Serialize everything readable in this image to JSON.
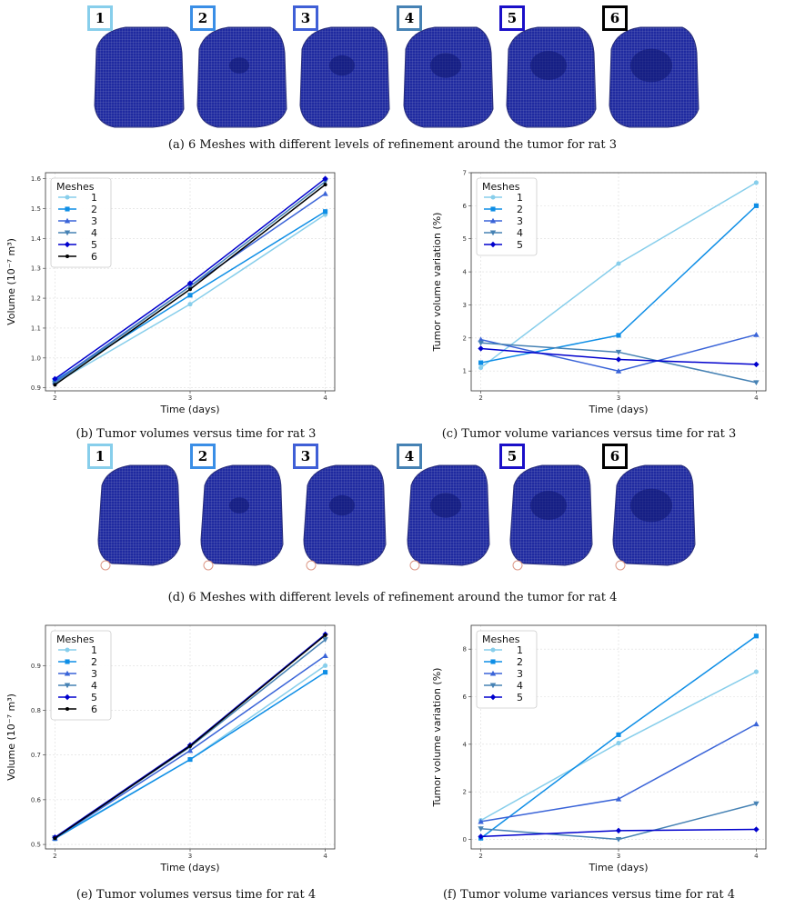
{
  "captions": {
    "a": "(a) 6 Meshes with different levels of refinement around the tumor for rat 3",
    "b": "(b) Tumor volumes versus time for rat 3",
    "c": "(c) Tumor volume variances versus time for rat 3",
    "d": "(d) 6 Meshes with different levels of refinement around the tumor for rat 4",
    "e": "(e) Tumor volumes versus time for rat 4",
    "f": "(f) Tumor volume variances versus time for rat 4"
  },
  "mesh_labels": [
    "1",
    "2",
    "3",
    "4",
    "5",
    "6"
  ],
  "mesh_label_colors": [
    "#87ceeb",
    "#3a8ee6",
    "#3f5fd6",
    "#4682b4",
    "#1a0fc8",
    "#000000"
  ],
  "mesh_fill_color": "#1f2aa0",
  "series_colors": [
    "#87ceeb",
    "#0e8ee6",
    "#3a64d8",
    "#4682b4",
    "#0000cd",
    "#000000"
  ],
  "chart_data": [
    {
      "id": "b",
      "type": "line",
      "xlabel": "Time (days)",
      "ylabel": "Volume (10⁻⁷ m³)",
      "legend_title": "Meshes",
      "legend_position": "top-left",
      "grid": true,
      "x": [
        2,
        3,
        4
      ],
      "xticks": [
        "2",
        "3",
        "4"
      ],
      "xlim": [
        1.93,
        4.07
      ],
      "ylim": [
        0.89,
        1.62
      ],
      "yticks": [
        "0.9",
        "1.0",
        "1.1",
        "1.2",
        "1.3",
        "1.4",
        "1.5",
        "1.6"
      ],
      "ytick_values": [
        0.9,
        1.0,
        1.1,
        1.2,
        1.3,
        1.4,
        1.5,
        1.6
      ],
      "series": [
        {
          "name": "1",
          "marker": "circle",
          "values": [
            0.915,
            1.18,
            1.48
          ]
        },
        {
          "name": "2",
          "marker": "square",
          "values": [
            0.925,
            1.21,
            1.49
          ]
        },
        {
          "name": "3",
          "marker": "triangle-up",
          "values": [
            0.92,
            1.24,
            1.55
          ]
        },
        {
          "name": "4",
          "marker": "triangle-down",
          "values": [
            0.915,
            1.24,
            1.59
          ]
        },
        {
          "name": "5",
          "marker": "diamond",
          "values": [
            0.93,
            1.25,
            1.6
          ]
        },
        {
          "name": "6",
          "marker": "dot",
          "values": [
            0.91,
            1.23,
            1.58
          ]
        }
      ]
    },
    {
      "id": "c",
      "type": "line",
      "xlabel": "Time (days)",
      "ylabel": "Tumor volume variation (%)",
      "legend_title": "Meshes",
      "legend_position": "top-left",
      "grid": true,
      "x": [
        2,
        3,
        4
      ],
      "xticks": [
        "2",
        "3",
        "4"
      ],
      "xlim": [
        1.93,
        4.07
      ],
      "ylim": [
        0.4,
        7.0
      ],
      "yticks": [
        "1",
        "2",
        "3",
        "4",
        "5",
        "6",
        "7"
      ],
      "ytick_values": [
        1,
        2,
        3,
        4,
        5,
        6,
        7
      ],
      "series": [
        {
          "name": "1",
          "marker": "circle",
          "values": [
            1.1,
            4.25,
            6.7
          ]
        },
        {
          "name": "2",
          "marker": "square",
          "values": [
            1.25,
            2.08,
            6.0
          ]
        },
        {
          "name": "3",
          "marker": "triangle-up",
          "values": [
            1.95,
            1.0,
            2.1
          ]
        },
        {
          "name": "4",
          "marker": "triangle-down",
          "values": [
            1.85,
            1.57,
            0.65
          ]
        },
        {
          "name": "5",
          "marker": "diamond",
          "values": [
            1.68,
            1.35,
            1.2
          ]
        }
      ]
    },
    {
      "id": "e",
      "type": "line",
      "xlabel": "Time (days)",
      "ylabel": "Volume (10⁻⁷ m³)",
      "legend_title": "Meshes",
      "legend_position": "top-left",
      "grid": true,
      "x": [
        2,
        3,
        4
      ],
      "xticks": [
        "2",
        "3",
        "4"
      ],
      "xlim": [
        1.93,
        4.07
      ],
      "ylim": [
        0.49,
        0.99
      ],
      "yticks": [
        "0.5",
        "0.6",
        "0.7",
        "0.8",
        "0.9"
      ],
      "ytick_values": [
        0.5,
        0.6,
        0.7,
        0.8,
        0.9
      ],
      "series": [
        {
          "name": "1",
          "marker": "circle",
          "values": [
            0.515,
            0.69,
            0.9
          ]
        },
        {
          "name": "2",
          "marker": "square",
          "values": [
            0.513,
            0.69,
            0.885
          ]
        },
        {
          "name": "3",
          "marker": "triangle-up",
          "values": [
            0.514,
            0.71,
            0.922
          ]
        },
        {
          "name": "4",
          "marker": "triangle-down",
          "values": [
            0.515,
            0.718,
            0.958
          ]
        },
        {
          "name": "5",
          "marker": "diamond",
          "values": [
            0.516,
            0.722,
            0.97
          ]
        },
        {
          "name": "6",
          "marker": "dot",
          "values": [
            0.514,
            0.72,
            0.968
          ]
        }
      ]
    },
    {
      "id": "f",
      "type": "line",
      "xlabel": "Time (days)",
      "ylabel": "Tumor volume variation (%)",
      "legend_title": "Meshes",
      "legend_position": "top-left",
      "grid": true,
      "x": [
        2,
        3,
        4
      ],
      "xticks": [
        "2",
        "3",
        "4"
      ],
      "xlim": [
        1.93,
        4.07
      ],
      "ylim": [
        -0.4,
        9.0
      ],
      "yticks": [
        "0",
        "2",
        "4",
        "6",
        "8"
      ],
      "ytick_values": [
        0,
        2,
        4,
        6,
        8
      ],
      "series": [
        {
          "name": "1",
          "marker": "circle",
          "values": [
            0.8,
            4.05,
            7.05
          ]
        },
        {
          "name": "2",
          "marker": "square",
          "values": [
            0.05,
            4.4,
            8.55
          ]
        },
        {
          "name": "3",
          "marker": "triangle-up",
          "values": [
            0.75,
            1.7,
            4.85
          ]
        },
        {
          "name": "4",
          "marker": "triangle-down",
          "values": [
            0.45,
            0.0,
            1.5
          ]
        },
        {
          "name": "5",
          "marker": "diamond",
          "values": [
            0.12,
            0.37,
            0.42
          ]
        }
      ]
    }
  ]
}
